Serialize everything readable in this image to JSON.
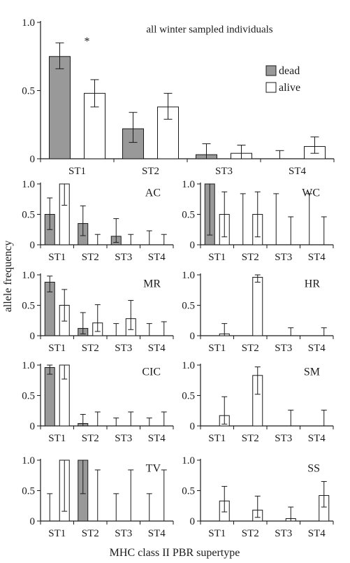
{
  "figure": {
    "ylabel": "allele frequency",
    "xlabel": "MHC class II PBR supertype",
    "colors": {
      "dead": "#999999",
      "alive": "#ffffff",
      "stroke": "#1a1a1a"
    }
  },
  "chart_data": [
    {
      "type": "bar",
      "title": "all winter sampled individuals",
      "categories": [
        "ST1",
        "ST2",
        "ST3",
        "ST4"
      ],
      "ylim": [
        0,
        1.0
      ],
      "yticks": [
        "0",
        "0.5",
        "1.0"
      ],
      "legend": {
        "position": "right",
        "entries": [
          "dead",
          "alive"
        ]
      },
      "annotations": [
        {
          "text": "*",
          "category": "ST1"
        }
      ],
      "series": [
        {
          "name": "dead",
          "values": [
            0.75,
            0.22,
            0.03,
            0.0
          ],
          "err_low": [
            0.66,
            0.12,
            0.0,
            0.0
          ],
          "err_high": [
            0.85,
            0.34,
            0.11,
            0.06
          ]
        },
        {
          "name": "alive",
          "values": [
            0.48,
            0.38,
            0.04,
            0.09
          ],
          "err_low": [
            0.38,
            0.29,
            0.0,
            0.04
          ],
          "err_high": [
            0.58,
            0.48,
            0.1,
            0.16
          ]
        }
      ]
    },
    {
      "type": "bar",
      "title": "AC",
      "categories": [
        "ST1",
        "ST2",
        "ST3",
        "ST4"
      ],
      "ylim": [
        0,
        1.0
      ],
      "yticks": [
        "0",
        "0.5",
        "1.0"
      ],
      "series": [
        {
          "name": "dead",
          "values": [
            0.5,
            0.35,
            0.14,
            0.0
          ],
          "err_low": [
            0.25,
            0.15,
            0.04,
            0.0
          ],
          "err_high": [
            0.77,
            0.64,
            0.43,
            0.23
          ]
        },
        {
          "name": "alive",
          "values": [
            1.0,
            0.0,
            0.0,
            0.0
          ],
          "err_low": [
            0.65,
            0.0,
            0.0,
            0.0
          ],
          "err_high": [
            1.0,
            0.17,
            0.17,
            0.17
          ]
        }
      ]
    },
    {
      "type": "bar",
      "title": "WC",
      "categories": [
        "ST1",
        "ST2",
        "ST3",
        "ST4"
      ],
      "ylim": [
        0,
        1.0
      ],
      "yticks": [
        "0",
        "0.5",
        "1.0"
      ],
      "series": [
        {
          "name": "dead",
          "values": [
            1.0,
            0.0,
            0.0,
            0.0
          ],
          "err_low": [
            0.16,
            0.0,
            0.0,
            0.0
          ],
          "err_high": [
            1.0,
            0.84,
            0.84,
            0.84
          ]
        },
        {
          "name": "alive",
          "values": [
            0.5,
            0.5,
            0.0,
            0.0
          ],
          "err_low": [
            0.13,
            0.13,
            0.0,
            0.0
          ],
          "err_high": [
            0.87,
            0.87,
            0.46,
            0.46
          ]
        }
      ]
    },
    {
      "type": "bar",
      "title": "MR",
      "categories": [
        "ST1",
        "ST2",
        "ST3",
        "ST4"
      ],
      "ylim": [
        0,
        1.0
      ],
      "yticks": [
        "0",
        "0.5",
        "1.0"
      ],
      "series": [
        {
          "name": "dead",
          "values": [
            0.88,
            0.12,
            0.0,
            0.0
          ],
          "err_low": [
            0.72,
            0.03,
            0.0,
            0.0
          ],
          "err_high": [
            0.98,
            0.38,
            0.2,
            0.2
          ]
        },
        {
          "name": "alive",
          "values": [
            0.5,
            0.21,
            0.28,
            0.0
          ],
          "err_low": [
            0.24,
            0.07,
            0.1,
            0.0
          ],
          "err_high": [
            0.76,
            0.51,
            0.58,
            0.23
          ]
        }
      ]
    },
    {
      "type": "bar",
      "title": "HR",
      "categories": [
        "ST1",
        "ST2",
        "ST3",
        "ST4"
      ],
      "ylim": [
        0,
        1.0
      ],
      "yticks": [
        "0",
        "0.5",
        "1.0"
      ],
      "series": [
        {
          "name": "dead",
          "values": [
            0.0,
            0.0,
            0.0,
            0.0
          ],
          "err_low": [
            0.0,
            0.0,
            0.0,
            0.0
          ],
          "err_high": [
            0.0,
            0.0,
            0.0,
            0.0
          ]
        },
        {
          "name": "alive",
          "values": [
            0.03,
            0.96,
            0.0,
            0.0
          ],
          "err_low": [
            0.0,
            0.88,
            0.0,
            0.0
          ],
          "err_high": [
            0.2,
            1.0,
            0.13,
            0.13
          ]
        }
      ]
    },
    {
      "type": "bar",
      "title": "CIC",
      "categories": [
        "ST1",
        "ST2",
        "ST3",
        "ST4"
      ],
      "ylim": [
        0,
        1.0
      ],
      "yticks": [
        "0",
        "0.5",
        "1.0"
      ],
      "series": [
        {
          "name": "dead",
          "values": [
            0.96,
            0.04,
            0.0,
            0.0
          ],
          "err_low": [
            0.85,
            0.0,
            0.0,
            0.0
          ],
          "err_high": [
            1.0,
            0.19,
            0.13,
            0.13
          ]
        },
        {
          "name": "alive",
          "values": [
            1.0,
            0.0,
            0.0,
            0.0
          ],
          "err_low": [
            0.77,
            0.0,
            0.0,
            0.0
          ],
          "err_high": [
            1.0,
            0.23,
            0.23,
            0.23
          ]
        }
      ]
    },
    {
      "type": "bar",
      "title": "SM",
      "categories": [
        "ST1",
        "ST2",
        "ST3",
        "ST4"
      ],
      "ylim": [
        0,
        1.0
      ],
      "yticks": [
        "0",
        "0.5",
        "1.0"
      ],
      "series": [
        {
          "name": "dead",
          "values": [
            0.0,
            0.0,
            0.0,
            0.0
          ],
          "err_low": [
            0.0,
            0.0,
            0.0,
            0.0
          ],
          "err_high": [
            0.0,
            0.0,
            0.0,
            0.0
          ]
        },
        {
          "name": "alive",
          "values": [
            0.17,
            0.83,
            0.0,
            0.0
          ],
          "err_low": [
            0.03,
            0.52,
            0.0,
            0.0
          ],
          "err_high": [
            0.48,
            0.97,
            0.26,
            0.26
          ]
        }
      ]
    },
    {
      "type": "bar",
      "title": "TV",
      "categories": [
        "ST1",
        "ST2",
        "ST3",
        "ST4"
      ],
      "ylim": [
        0,
        1.0
      ],
      "yticks": [
        "0",
        "0.5",
        "1.0"
      ],
      "series": [
        {
          "name": "dead",
          "values": [
            0.0,
            1.0,
            0.0,
            0.0
          ],
          "err_low": [
            0.0,
            0.45,
            0.0,
            0.0
          ],
          "err_high": [
            0.45,
            1.0,
            0.45,
            0.45
          ]
        },
        {
          "name": "alive",
          "values": [
            1.0,
            0.0,
            0.0,
            0.0
          ],
          "err_low": [
            0.16,
            0.0,
            0.0,
            0.0
          ],
          "err_high": [
            1.0,
            0.84,
            0.84,
            0.84
          ]
        }
      ]
    },
    {
      "type": "bar",
      "title": "SS",
      "categories": [
        "ST1",
        "ST2",
        "ST3",
        "ST4"
      ],
      "ylim": [
        0,
        1.0
      ],
      "yticks": [
        "0",
        "0.5",
        "1.0"
      ],
      "series": [
        {
          "name": "dead",
          "values": [
            0.0,
            0.0,
            0.0,
            0.0
          ],
          "err_low": [
            0.0,
            0.0,
            0.0,
            0.0
          ],
          "err_high": [
            0.0,
            0.0,
            0.0,
            0.0
          ]
        },
        {
          "name": "alive",
          "values": [
            0.33,
            0.18,
            0.04,
            0.42
          ],
          "err_low": [
            0.15,
            0.06,
            0.0,
            0.23
          ],
          "err_high": [
            0.57,
            0.41,
            0.23,
            0.65
          ]
        }
      ]
    }
  ]
}
